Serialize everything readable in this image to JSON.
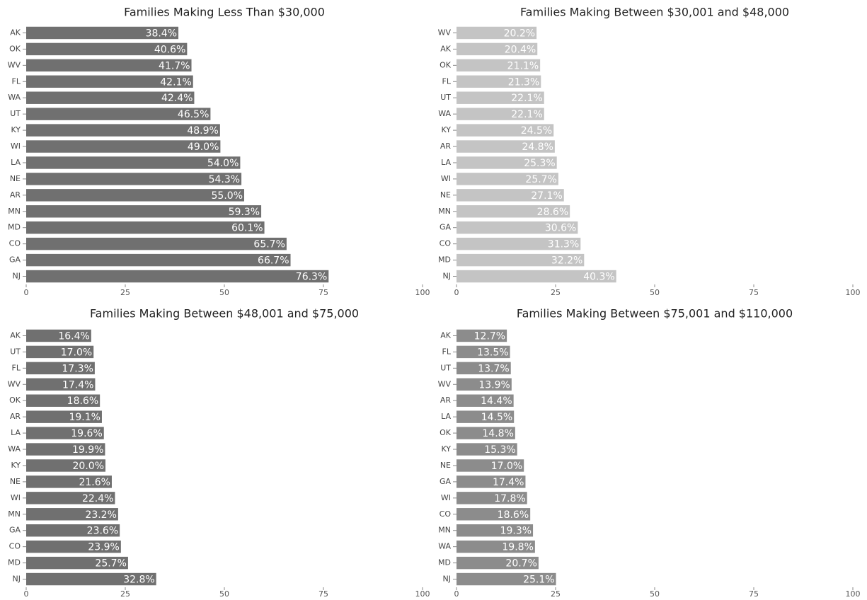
{
  "chart_data": [
    {
      "type": "bar",
      "orientation": "horizontal",
      "title": "Families Making Less Than $30,000",
      "categories": [
        "AK",
        "OK",
        "WV",
        "FL",
        "WA",
        "UT",
        "KY",
        "WI",
        "LA",
        "NE",
        "AR",
        "MN",
        "MD",
        "CO",
        "GA",
        "NJ"
      ],
      "values": [
        38.4,
        40.6,
        41.7,
        42.1,
        42.4,
        46.5,
        48.9,
        49.0,
        54.0,
        54.3,
        55.0,
        59.3,
        60.1,
        65.7,
        66.7,
        76.3
      ],
      "value_labels": [
        "38.4%",
        "40.6%",
        "41.7%",
        "42.1%",
        "42.4%",
        "46.5%",
        "48.9%",
        "49.0%",
        "54.0%",
        "54.3%",
        "55.0%",
        "59.3%",
        "60.1%",
        "65.7%",
        "66.7%",
        "76.3%"
      ],
      "color": "#707070",
      "xlim": [
        0,
        100
      ],
      "xticks": [
        0,
        25,
        50,
        75,
        100
      ]
    },
    {
      "type": "bar",
      "orientation": "horizontal",
      "title": "Families Making Between $30,001 and $48,000",
      "categories": [
        "WV",
        "AK",
        "OK",
        "FL",
        "UT",
        "WA",
        "KY",
        "AR",
        "LA",
        "WI",
        "NE",
        "MN",
        "GA",
        "CO",
        "MD",
        "NJ"
      ],
      "values": [
        20.2,
        20.4,
        21.1,
        21.3,
        22.1,
        22.1,
        24.5,
        24.8,
        25.3,
        25.7,
        27.1,
        28.6,
        30.6,
        31.3,
        32.2,
        40.3
      ],
      "value_labels": [
        "20.2%",
        "20.4%",
        "21.1%",
        "21.3%",
        "22.1%",
        "22.1%",
        "24.5%",
        "24.8%",
        "25.3%",
        "25.7%",
        "27.1%",
        "28.6%",
        "30.6%",
        "31.3%",
        "32.2%",
        "40.3%"
      ],
      "color": "#c4c4c4",
      "xlim": [
        0,
        100
      ],
      "xticks": [
        0,
        25,
        50,
        75,
        100
      ]
    },
    {
      "type": "bar",
      "orientation": "horizontal",
      "title": "Families Making Between $48,001 and $75,000",
      "categories": [
        "AK",
        "UT",
        "FL",
        "WV",
        "OK",
        "AR",
        "LA",
        "WA",
        "KY",
        "NE",
        "WI",
        "MN",
        "GA",
        "CO",
        "MD",
        "NJ"
      ],
      "values": [
        16.4,
        17.0,
        17.3,
        17.4,
        18.6,
        19.1,
        19.6,
        19.9,
        20.0,
        21.6,
        22.4,
        23.2,
        23.6,
        23.9,
        25.7,
        32.8
      ],
      "value_labels": [
        "16.4%",
        "17.0%",
        "17.3%",
        "17.4%",
        "18.6%",
        "19.1%",
        "19.6%",
        "19.9%",
        "20.0%",
        "21.6%",
        "22.4%",
        "23.2%",
        "23.6%",
        "23.9%",
        "25.7%",
        "32.8%"
      ],
      "color": "#707070",
      "xlim": [
        0,
        100
      ],
      "xticks": [
        0,
        25,
        50,
        75,
        100
      ]
    },
    {
      "type": "bar",
      "orientation": "horizontal",
      "title": "Families Making Between $75,001 and $110,000",
      "categories": [
        "AK",
        "FL",
        "UT",
        "WV",
        "AR",
        "LA",
        "OK",
        "KY",
        "NE",
        "GA",
        "WI",
        "CO",
        "MN",
        "WA",
        "MD",
        "NJ"
      ],
      "values": [
        12.7,
        13.5,
        13.7,
        13.9,
        14.4,
        14.5,
        14.8,
        15.3,
        17.0,
        17.4,
        17.8,
        18.6,
        19.3,
        19.8,
        20.7,
        25.1
      ],
      "value_labels": [
        "12.7%",
        "13.5%",
        "13.7%",
        "13.9%",
        "14.4%",
        "14.5%",
        "14.8%",
        "15.3%",
        "17.0%",
        "17.4%",
        "17.8%",
        "18.6%",
        "19.3%",
        "19.8%",
        "20.7%",
        "25.1%"
      ],
      "color": "#8c8c8c",
      "xlim": [
        0,
        100
      ],
      "xticks": [
        0,
        25,
        50,
        75,
        100
      ]
    }
  ]
}
